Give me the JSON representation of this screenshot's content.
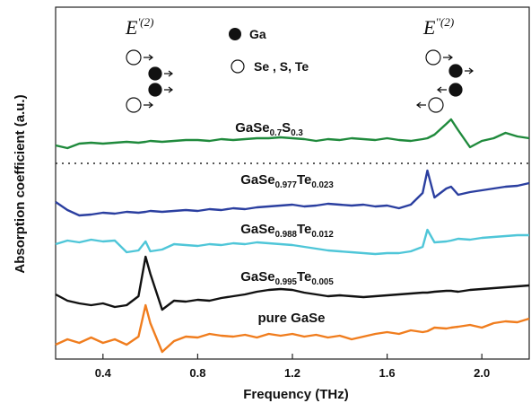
{
  "chart_data": {
    "type": "line",
    "x_label": "Frequency (THz)",
    "y_label": "Absorption coefficient (a.u.)",
    "legend_items": [
      "Ga",
      "Se , S, Te"
    ],
    "annotations": [
      "E'(2)",
      "E''(2)"
    ],
    "x": [
      0.2,
      0.25,
      0.3,
      0.35,
      0.4,
      0.45,
      0.5,
      0.55,
      0.58,
      0.6,
      0.65,
      0.7,
      0.75,
      0.8,
      0.85,
      0.9,
      0.95,
      1.0,
      1.05,
      1.1,
      1.15,
      1.2,
      1.25,
      1.3,
      1.35,
      1.4,
      1.45,
      1.5,
      1.55,
      1.6,
      1.65,
      1.7,
      1.75,
      1.77,
      1.8,
      1.85,
      1.87,
      1.9,
      1.95,
      2.0,
      2.05,
      2.1,
      2.15,
      2.2
    ],
    "xlim": [
      0.2,
      2.2
    ],
    "xticks": [
      0.4,
      0.8,
      1.2,
      1.6,
      {
        "value": 2,
        "label": "2.0"
      }
    ],
    "ylim": [
      0,
      392
    ],
    "series": [
      {
        "name": "GaSe0.7S0.3",
        "color": "#1f8a3c",
        "values": [
          238,
          235,
          240,
          241,
          240,
          241,
          242,
          241,
          242,
          243,
          242,
          243,
          244,
          244,
          243,
          245,
          244,
          245,
          246,
          246,
          247,
          246,
          245,
          243,
          245,
          244,
          246,
          245,
          244,
          246,
          244,
          243,
          245,
          246,
          250,
          262,
          267,
          255,
          236,
          243,
          246,
          252,
          248,
          246
        ]
      },
      {
        "name": "GaSe0.977Te0.023",
        "color": "#2b3fa0",
        "values": [
          175,
          166,
          160,
          161,
          163,
          162,
          164,
          163,
          164,
          165,
          164,
          165,
          166,
          165,
          167,
          166,
          168,
          167,
          169,
          170,
          171,
          172,
          170,
          171,
          173,
          172,
          171,
          172,
          170,
          171,
          168,
          172,
          185,
          210,
          180,
          190,
          192,
          183,
          186,
          188,
          190,
          192,
          193,
          196
        ]
      },
      {
        "name": "GaSe0.988Te0.012",
        "color": "#4fc6d8",
        "values": [
          128,
          132,
          130,
          133,
          131,
          132,
          119,
          121,
          131,
          120,
          122,
          128,
          127,
          126,
          128,
          127,
          129,
          128,
          130,
          129,
          128,
          127,
          125,
          123,
          121,
          120,
          119,
          118,
          117,
          118,
          118,
          120,
          125,
          144,
          130,
          131,
          132,
          134,
          133,
          135,
          136,
          137,
          138,
          138
        ]
      },
      {
        "name": "GaSe0.995Te0.005",
        "color": "#111111",
        "values": [
          72,
          65,
          62,
          60,
          62,
          58,
          60,
          70,
          114,
          95,
          55,
          65,
          64,
          66,
          65,
          68,
          70,
          72,
          75,
          77,
          78,
          77,
          74,
          72,
          70,
          71,
          70,
          69,
          70,
          71,
          72,
          73,
          74,
          74,
          75,
          76,
          76,
          75,
          77,
          78,
          79,
          80,
          81,
          82
        ]
      },
      {
        "name": "pure GaSe",
        "color": "#f07d1e",
        "values": [
          16,
          22,
          18,
          24,
          18,
          22,
          16,
          25,
          60,
          40,
          8,
          20,
          25,
          24,
          28,
          26,
          25,
          27,
          24,
          28,
          26,
          28,
          25,
          27,
          24,
          26,
          22,
          25,
          28,
          30,
          28,
          32,
          30,
          31,
          35,
          34,
          35,
          36,
          38,
          35,
          40,
          42,
          41,
          45
        ]
      }
    ]
  }
}
